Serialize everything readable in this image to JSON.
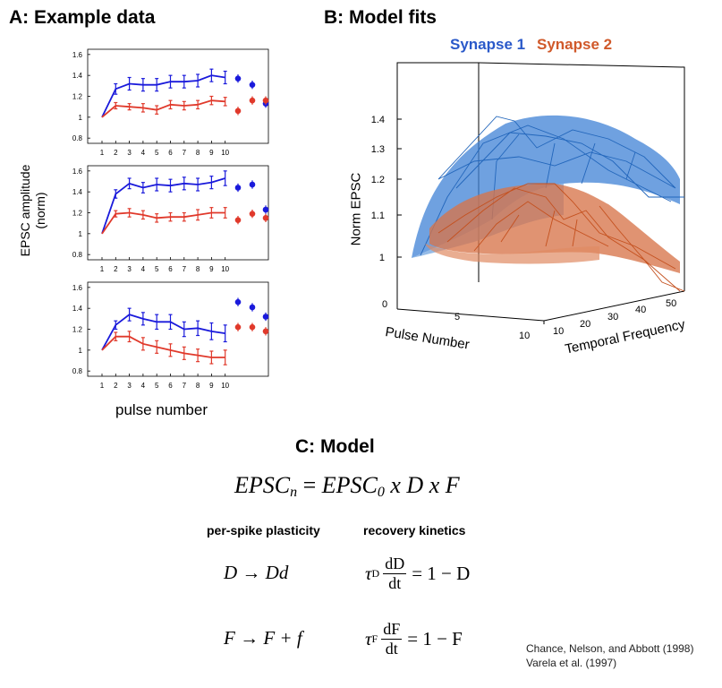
{
  "panel_a": {
    "title": "A: Example data",
    "ylabel_line1": "EPSC amplitude",
    "ylabel_line2": "(norm)",
    "xlabel": "pulse number"
  },
  "panel_b": {
    "title": "B: Model fits",
    "legend_syn1": "Synapse 1",
    "legend_syn2": "Synapse 2",
    "zlabel": "Norm EPSC",
    "xlabel": "Pulse Number",
    "ylabel": "Temporal Frequency"
  },
  "panel_c": {
    "title": "C: Model",
    "main_eq": {
      "lhs": "EPSC",
      "lhs_sub": "n",
      "eq": " = ",
      "rhs": "EPSC",
      "rhs_sub": "0",
      "tail": " x D x F"
    },
    "col1_head": "per-spike plasticity",
    "col2_head": "recovery kinetics",
    "eq1_left": "D  →  Dd",
    "eq2_left": "F  →  F + f",
    "eq1_right_tau": "τ",
    "eq1_right_tausub": "D",
    "eq1_right_num": "dD",
    "eq1_right_den": "dt",
    "eq1_right_rhs": "= 1 − D",
    "eq2_right_tau": "τ",
    "eq2_right_tausub": "F",
    "eq2_right_num": "dF",
    "eq2_right_den": "dt",
    "eq2_right_rhs": "= 1 − F"
  },
  "citations": {
    "line1": "Chance, Nelson, and Abbott (1998)",
    "line2": "Varela et al. (1997)"
  },
  "colors": {
    "blue": "#1a1adb",
    "red": "#e0392b",
    "syn1": "#2f6fc4",
    "syn2": "#d0592a"
  },
  "chart_data": [
    {
      "type": "line",
      "name": "example-data-top",
      "x": [
        1,
        2,
        3,
        4,
        5,
        6,
        7,
        8,
        9,
        10
      ],
      "x_tick_labels": [
        "1",
        "2",
        "3",
        "4",
        "5",
        "6",
        "7",
        "8",
        "9",
        "10"
      ],
      "y_tick_labels": [
        "0.8",
        "1",
        "1.2",
        "1.4",
        "1.6"
      ],
      "y_ticks": [
        0.8,
        1.0,
        1.2,
        1.4,
        1.6
      ],
      "ylim": [
        0.75,
        1.65
      ],
      "series": [
        {
          "color": "blue",
          "values": [
            1.0,
            1.27,
            1.32,
            1.31,
            1.31,
            1.34,
            1.34,
            1.35,
            1.4,
            1.38
          ],
          "errors": [
            0,
            0.05,
            0.06,
            0.06,
            0.06,
            0.06,
            0.06,
            0.06,
            0.06,
            0.06
          ],
          "extra": [
            1.37,
            1.31,
            1.13
          ]
        },
        {
          "color": "red",
          "values": [
            1.0,
            1.11,
            1.1,
            1.09,
            1.07,
            1.12,
            1.11,
            1.12,
            1.16,
            1.15
          ],
          "errors": [
            0,
            0.03,
            0.03,
            0.04,
            0.04,
            0.04,
            0.04,
            0.04,
            0.04,
            0.04
          ],
          "extra": [
            1.06,
            1.16,
            1.16
          ]
        }
      ]
    },
    {
      "type": "line",
      "name": "example-data-middle",
      "x": [
        1,
        2,
        3,
        4,
        5,
        6,
        7,
        8,
        9,
        10
      ],
      "x_tick_labels": [
        "1",
        "2",
        "3",
        "4",
        "5",
        "6",
        "7",
        "8",
        "9",
        "10"
      ],
      "y_tick_labels": [
        "0.8",
        "1",
        "1.2",
        "1.4",
        "1.6"
      ],
      "y_ticks": [
        0.8,
        1.0,
        1.2,
        1.4,
        1.6
      ],
      "ylim": [
        0.75,
        1.65
      ],
      "series": [
        {
          "color": "blue",
          "values": [
            1.0,
            1.38,
            1.48,
            1.44,
            1.47,
            1.46,
            1.48,
            1.47,
            1.49,
            1.53
          ],
          "errors": [
            0,
            0.04,
            0.05,
            0.05,
            0.06,
            0.06,
            0.06,
            0.06,
            0.06,
            0.07
          ],
          "extra": [
            1.44,
            1.47,
            1.23
          ]
        },
        {
          "color": "red",
          "values": [
            1.0,
            1.19,
            1.2,
            1.18,
            1.15,
            1.16,
            1.16,
            1.18,
            1.2,
            1.2
          ],
          "errors": [
            0,
            0.03,
            0.04,
            0.04,
            0.04,
            0.04,
            0.04,
            0.05,
            0.05,
            0.05
          ],
          "extra": [
            1.13,
            1.19,
            1.15
          ]
        }
      ]
    },
    {
      "type": "line",
      "name": "example-data-bottom",
      "x": [
        1,
        2,
        3,
        4,
        5,
        6,
        7,
        8,
        9,
        10
      ],
      "x_tick_labels": [
        "1",
        "2",
        "3",
        "4",
        "5",
        "6",
        "7",
        "8",
        "9",
        "10"
      ],
      "y_tick_labels": [
        "0.8",
        "1",
        "1.2",
        "1.4",
        "1.6"
      ],
      "y_ticks": [
        0.8,
        1.0,
        1.2,
        1.4,
        1.6
      ],
      "ylim": [
        0.75,
        1.65
      ],
      "series": [
        {
          "color": "blue",
          "values": [
            1.0,
            1.24,
            1.34,
            1.3,
            1.27,
            1.27,
            1.2,
            1.21,
            1.18,
            1.16
          ],
          "errors": [
            0,
            0.04,
            0.06,
            0.06,
            0.07,
            0.07,
            0.07,
            0.07,
            0.08,
            0.08
          ],
          "extra": [
            1.46,
            1.41,
            1.32
          ]
        },
        {
          "color": "red",
          "values": [
            1.0,
            1.13,
            1.13,
            1.06,
            1.03,
            1.0,
            0.97,
            0.95,
            0.93,
            0.93
          ],
          "errors": [
            0,
            0.04,
            0.05,
            0.06,
            0.06,
            0.06,
            0.06,
            0.06,
            0.06,
            0.07
          ],
          "extra": [
            1.22,
            1.22,
            1.18
          ]
        }
      ]
    },
    {
      "type": "area",
      "name": "model-fits-3d",
      "z_tick_labels": [
        "1",
        "1.1",
        "1.2",
        "1.3",
        "1.4"
      ],
      "x_tick_labels": [
        "0",
        "5",
        "10"
      ],
      "y_tick_labels": [
        "10",
        "20",
        "30",
        "40",
        "50"
      ]
    }
  ]
}
